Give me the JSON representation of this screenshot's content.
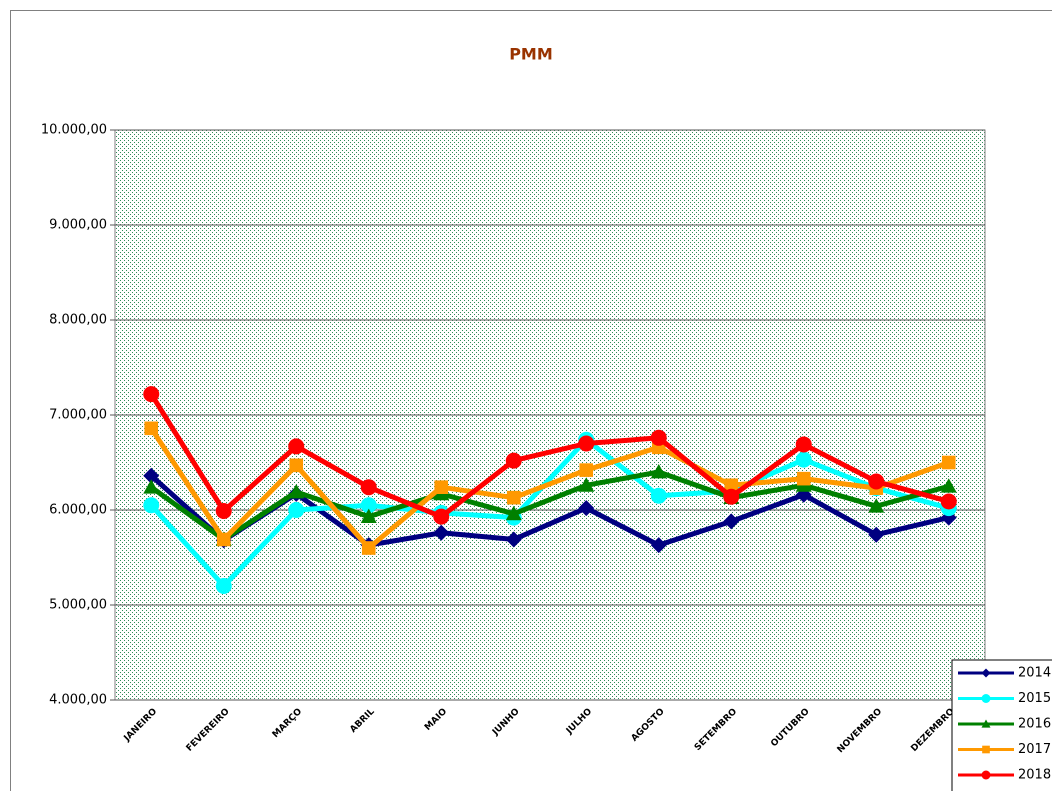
{
  "chart_data": {
    "type": "line",
    "title": "PMM",
    "categories": [
      "JANEIRO",
      "FEVEREIRO",
      "MARÇO",
      "ABRIL",
      "MAIO",
      "JUNHO",
      "JULHO",
      "AGOSTO",
      "SETEMBRO",
      "OUTUBRO",
      "NOVEMBRO",
      "DEZEMBRO"
    ],
    "series": [
      {
        "name": "2014",
        "color": "#000080",
        "marker": "diamond",
        "values": [
          6360,
          5680,
          6170,
          5630,
          5760,
          5690,
          6020,
          5630,
          5880,
          6160,
          5740,
          5920
        ]
      },
      {
        "name": "2015",
        "color": "#00ffff",
        "marker": "circle",
        "values": [
          6050,
          5200,
          6000,
          6050,
          5970,
          5920,
          6740,
          6150,
          6200,
          6530,
          6230,
          6020
        ]
      },
      {
        "name": "2016",
        "color": "#008000",
        "marker": "triangle",
        "values": [
          6240,
          5690,
          6190,
          5930,
          6170,
          5960,
          6260,
          6400,
          6130,
          6260,
          6040,
          6250
        ]
      },
      {
        "name": "2017",
        "color": "#ff9900",
        "marker": "square",
        "values": [
          6860,
          5690,
          6470,
          5600,
          6240,
          6130,
          6420,
          6660,
          6260,
          6330,
          6230,
          6500
        ]
      },
      {
        "name": "2018",
        "color": "#ff0000",
        "marker": "circle",
        "values": [
          7220,
          5990,
          6670,
          6240,
          5930,
          6520,
          6700,
          6760,
          6140,
          6690,
          6300,
          6090
        ]
      }
    ],
    "ylim": [
      4000,
      10000
    ],
    "yticks": [
      {
        "value": 4000,
        "label": "4.000,00"
      },
      {
        "value": 5000,
        "label": "5.000,00"
      },
      {
        "value": 6000,
        "label": "6.000,00"
      },
      {
        "value": 7000,
        "label": "7.000,00"
      },
      {
        "value": 8000,
        "label": "8.000,00"
      },
      {
        "value": 9000,
        "label": "9.000,00"
      },
      {
        "value": 10000,
        "label": "10.000,00"
      }
    ],
    "grid": true,
    "legend": "lower right"
  }
}
